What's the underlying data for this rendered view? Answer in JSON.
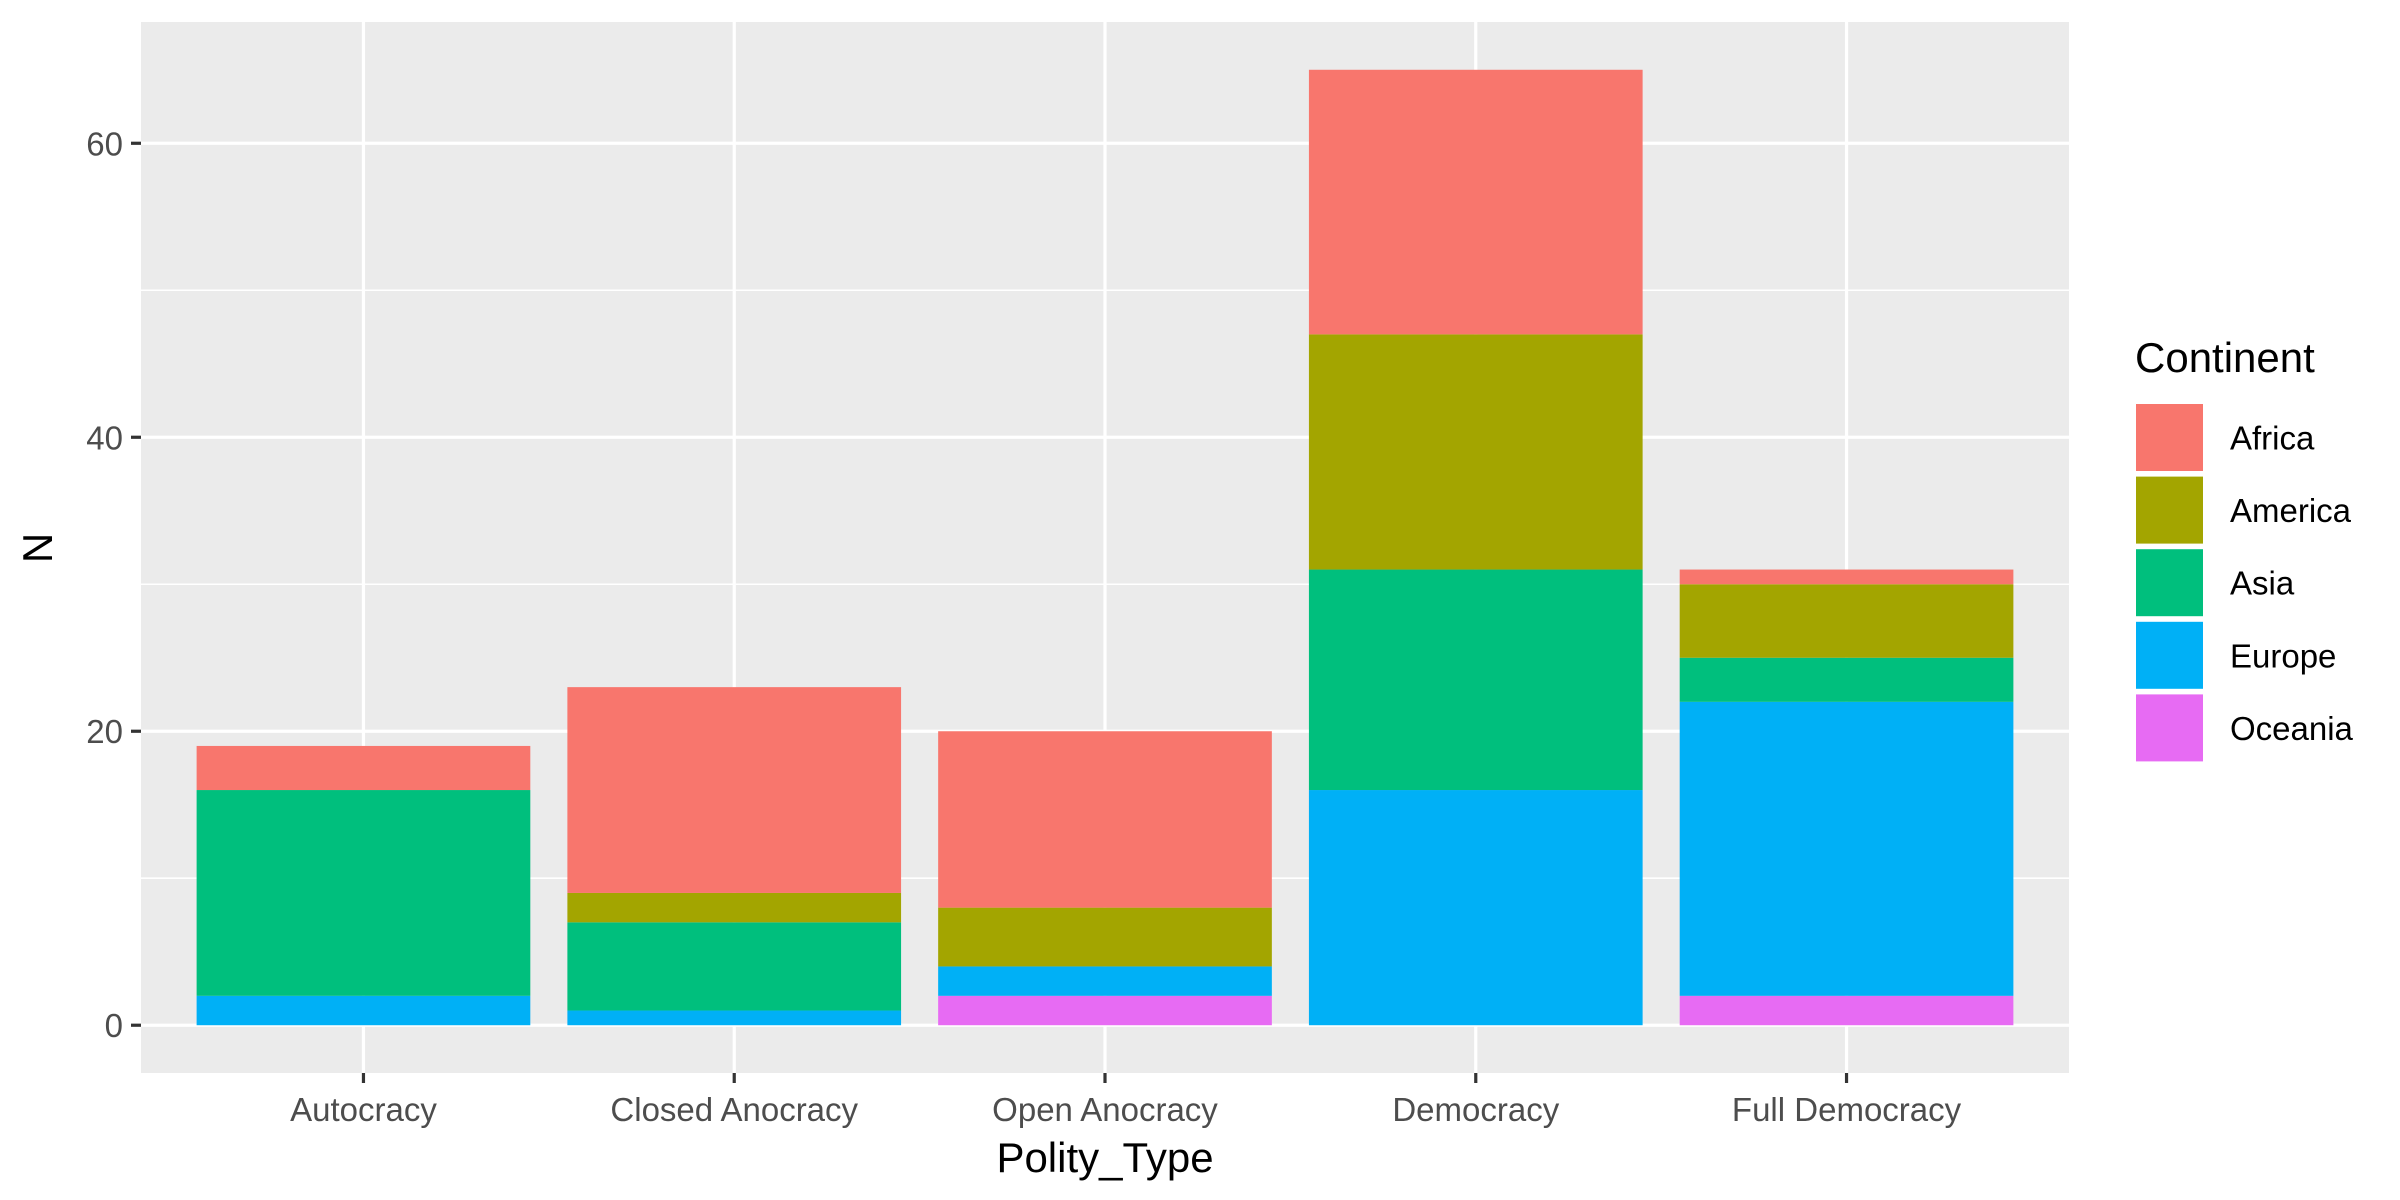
{
  "chart_data": {
    "type": "bar",
    "stacked": true,
    "xlabel": "Polity_Type",
    "ylabel": "N",
    "categories": [
      "Autocracy",
      "Closed Anocracy",
      "Open Anocracy",
      "Democracy",
      "Full Democracy"
    ],
    "y_ticks": [
      0,
      20,
      40,
      60
    ],
    "ylim": [
      -3.25,
      68.25
    ],
    "grid": true,
    "legend": {
      "title": "Continent",
      "position": "right"
    },
    "series": [
      {
        "name": "Oceania",
        "color": "#E76BF3",
        "values": [
          0,
          0,
          2,
          0,
          2
        ]
      },
      {
        "name": "Europe",
        "color": "#00B0F6",
        "values": [
          2,
          1,
          2,
          16,
          20
        ]
      },
      {
        "name": "Asia",
        "color": "#00BF7D",
        "values": [
          14,
          6,
          0,
          15,
          3
        ]
      },
      {
        "name": "America",
        "color": "#A3A500",
        "values": [
          0,
          2,
          4,
          16,
          5
        ]
      },
      {
        "name": "Africa",
        "color": "#F8766D",
        "values": [
          3,
          14,
          12,
          18,
          1
        ]
      }
    ],
    "legend_order": [
      "Africa",
      "America",
      "Asia",
      "Europe",
      "Oceania"
    ],
    "panel_background": "#EBEBEB",
    "grid_color": "#FFFFFF"
  }
}
